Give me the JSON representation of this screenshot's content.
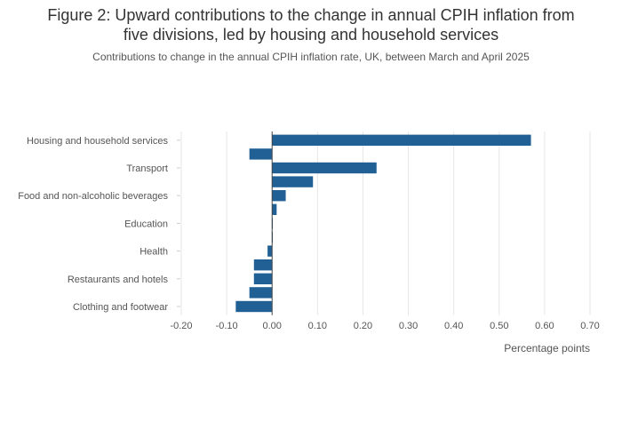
{
  "title_lines": [
    "Figure 2: Upward contributions to the change in annual CPIH inflation from",
    "five divisions, led by housing and household services"
  ],
  "subtitle": "Contributions to change in the annual CPIH inflation rate, UK, between March and April 2025",
  "chart_data": {
    "type": "bar",
    "orientation": "horizontal",
    "categories": [
      "Housing and household services",
      "",
      "Transport",
      "",
      "Food and non-alcoholic beverages",
      "",
      "Education",
      "",
      "Health",
      "",
      "Restaurants and hotels",
      "",
      "Clothing and footwear"
    ],
    "values": [
      0.57,
      -0.05,
      0.23,
      0.09,
      0.03,
      0.01,
      0.0,
      0.0,
      -0.01,
      -0.04,
      -0.04,
      -0.05,
      -0.08
    ],
    "xlabel": "Percentage points",
    "xlim": [
      -0.2,
      0.7
    ],
    "xticks": [
      -0.2,
      -0.1,
      0.0,
      0.1,
      0.2,
      0.3,
      0.4,
      0.5,
      0.6,
      0.7
    ],
    "xtick_labels": [
      "-0.20",
      "-0.10",
      "0.00",
      "0.10",
      "0.20",
      "0.30",
      "0.40",
      "0.50",
      "0.60",
      "0.70"
    ],
    "grid": "vertical",
    "bar_color": "#206095",
    "grid_color": "#e6e6e6",
    "zero_line_color": "#444444"
  }
}
